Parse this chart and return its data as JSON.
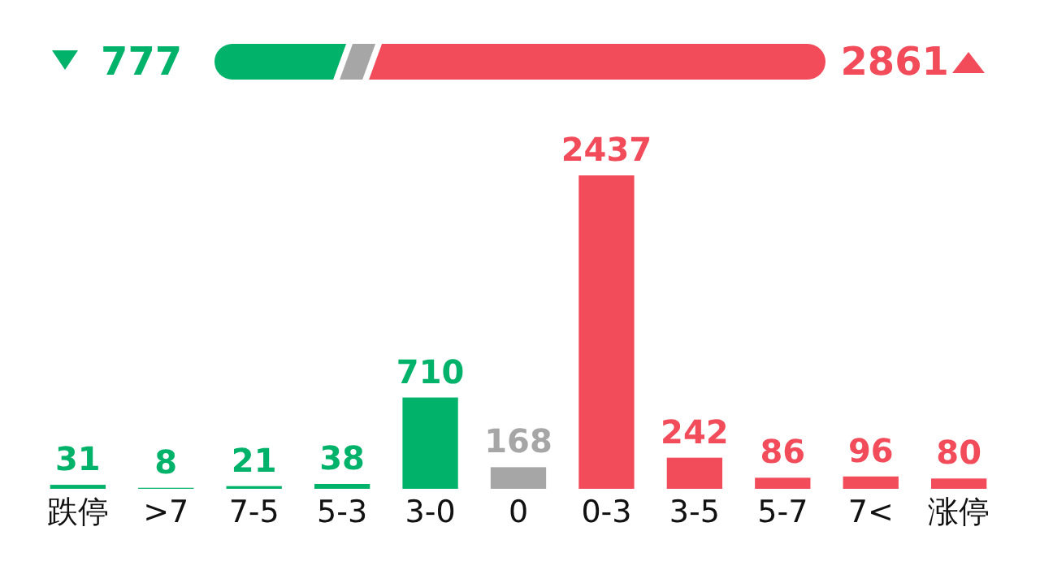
{
  "chart_data": {
    "type": "bar",
    "categories": [
      "跌停",
      ">7",
      "7-5",
      "5-3",
      "3-0",
      "0",
      "0-3",
      "3-5",
      "5-7",
      "7<",
      "涨停"
    ],
    "values": [
      31,
      8,
      21,
      38,
      710,
      168,
      2437,
      242,
      86,
      96,
      80
    ],
    "colors": [
      "#00b26a",
      "#00b26a",
      "#00b26a",
      "#00b26a",
      "#00b26a",
      "#a6a6a6",
      "#f24c5b",
      "#f24c5b",
      "#f24c5b",
      "#f24c5b",
      "#f24c5b"
    ],
    "data_labels": true,
    "annotations": [
      "777",
      "2861"
    ]
  }
}
